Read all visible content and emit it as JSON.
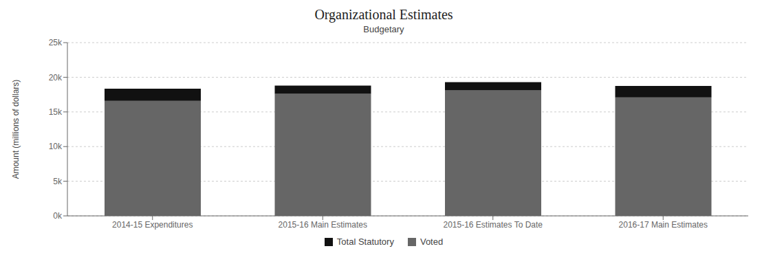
{
  "chart_data": {
    "type": "bar",
    "title": "Organizational Estimates",
    "subtitle": "Budgetary",
    "categories": [
      "2014-15 Expenditures",
      "2015-16 Main Estimates",
      "2015-16 Estimates To Date",
      "2016-17 Main Estimates"
    ],
    "series": [
      {
        "name": "Voted",
        "color": "#666666",
        "values": [
          16600,
          17600,
          18100,
          17100
        ]
      },
      {
        "name": "Total Statutory",
        "color": "#111111",
        "values": [
          1750,
          1200,
          1200,
          1650
        ]
      }
    ],
    "stacked": true,
    "ylabel": "Amount (millions of dollars)",
    "ylim": [
      0,
      25000
    ],
    "yticks": [
      {
        "value": 0,
        "label": "0k"
      },
      {
        "value": 5000,
        "label": "5k"
      },
      {
        "value": 10000,
        "label": "10k"
      },
      {
        "value": 15000,
        "label": "15k"
      },
      {
        "value": 20000,
        "label": "20k"
      },
      {
        "value": 25000,
        "label": "25k"
      }
    ],
    "grid": true,
    "legend": "bottom"
  }
}
